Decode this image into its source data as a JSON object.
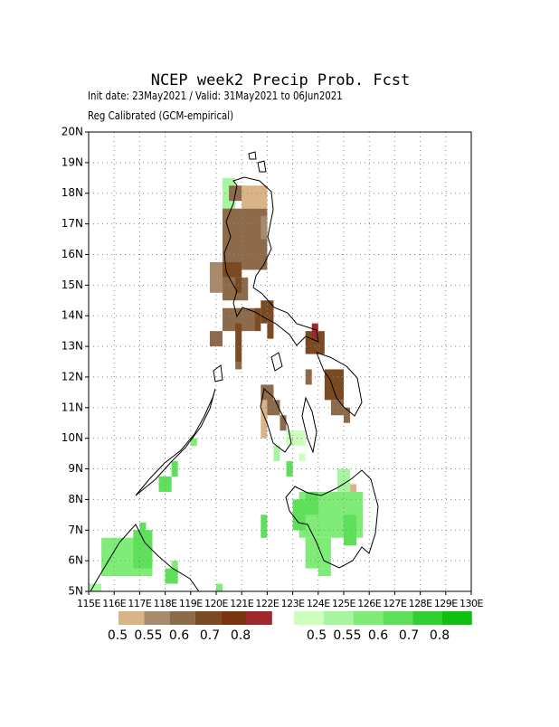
{
  "title": "NCEP week2 Precip Prob. Fcst",
  "subtitle": "Init date: 23May2021 / Valid: 31May2021 to 06Jun2021",
  "note": "Reg Calibrated (GCM-empirical)",
  "map": {
    "xlim": [
      115,
      130
    ],
    "ylim": [
      5,
      20
    ],
    "xticks": [
      {
        "value": 115,
        "label": "115E"
      },
      {
        "value": 116,
        "label": "116E"
      },
      {
        "value": 117,
        "label": "117E"
      },
      {
        "value": 118,
        "label": "118E"
      },
      {
        "value": 119,
        "label": "119E"
      },
      {
        "value": 120,
        "label": "120E"
      },
      {
        "value": 121,
        "label": "121E"
      },
      {
        "value": 122,
        "label": "122E"
      },
      {
        "value": 123,
        "label": "123E"
      },
      {
        "value": 124,
        "label": "124E"
      },
      {
        "value": 125,
        "label": "125E"
      },
      {
        "value": 126,
        "label": "126E"
      },
      {
        "value": 127,
        "label": "127E"
      },
      {
        "value": 128,
        "label": "128E"
      },
      {
        "value": 129,
        "label": "129E"
      },
      {
        "value": 130,
        "label": "130E"
      }
    ],
    "yticks": [
      {
        "value": 5,
        "label": "5N"
      },
      {
        "value": 6,
        "label": "6N"
      },
      {
        "value": 7,
        "label": "7N"
      },
      {
        "value": 8,
        "label": "8N"
      },
      {
        "value": 9,
        "label": "9N"
      },
      {
        "value": 10,
        "label": "10N"
      },
      {
        "value": 11,
        "label": "11N"
      },
      {
        "value": 12,
        "label": "12N"
      },
      {
        "value": 13,
        "label": "13N"
      },
      {
        "value": 14,
        "label": "14N"
      },
      {
        "value": 15,
        "label": "15N"
      },
      {
        "value": 16,
        "label": "16N"
      },
      {
        "value": 17,
        "label": "17N"
      },
      {
        "value": 18,
        "label": "18N"
      },
      {
        "value": 19,
        "label": "19N"
      },
      {
        "value": 20,
        "label": "20N"
      }
    ],
    "grid": true
  },
  "legend_below": {
    "colors": [
      "#d9b487",
      "#a88a6c",
      "#8c6a4a",
      "#7a4a22",
      "#7a3410",
      "#a0282c"
    ],
    "labels": [
      "0.5",
      "0.55",
      "0.6",
      "0.7",
      "0.8"
    ]
  },
  "legend_above": {
    "colors": [
      "#ccffbb",
      "#a8f5a0",
      "#80ec78",
      "#5ee05a",
      "#30d030",
      "#10c010"
    ],
    "labels": [
      "0.5",
      "0.55",
      "0.6",
      "0.7",
      "0.8"
    ]
  }
}
